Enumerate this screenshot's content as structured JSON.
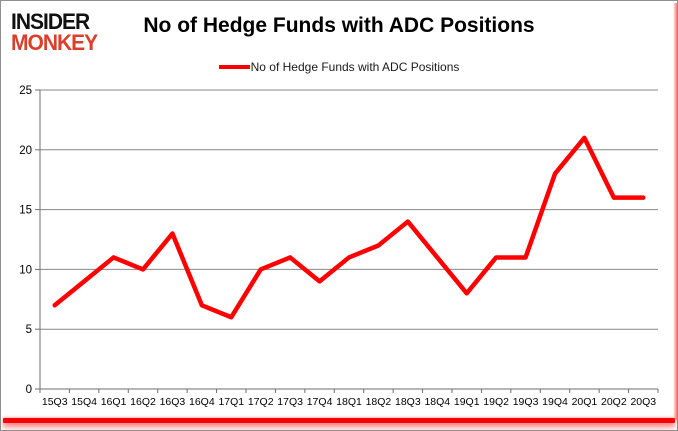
{
  "logo": {
    "line1": "INSIDER",
    "line2": "MONKEY"
  },
  "header": {
    "title": "No of Hedge Funds with ADC Positions"
  },
  "legend": {
    "label": "No of Hedge Funds with ADC Positions"
  },
  "colors": {
    "logo_accent": "#d9402c",
    "line_red": "#ff0000",
    "gridline": "#878787",
    "axis": "#6e6e6e",
    "label_text": "#000000",
    "frame_glow": "#f60303"
  },
  "chart_data": {
    "type": "line",
    "title": "No of Hedge Funds with ADC Positions",
    "series": [
      {
        "name": "No of Hedge Funds with ADC Positions",
        "values": [
          7,
          9,
          11,
          10,
          13,
          7,
          6,
          10,
          11,
          9,
          11,
          12,
          14,
          11,
          8,
          11,
          11,
          18,
          21,
          16,
          16
        ]
      }
    ],
    "categories": [
      "15Q3",
      "15Q4",
      "16Q1",
      "16Q2",
      "16Q3",
      "16Q4",
      "17Q1",
      "17Q2",
      "17Q3",
      "17Q4",
      "18Q1",
      "18Q2",
      "18Q3",
      "18Q4",
      "19Q1",
      "19Q2",
      "19Q3",
      "19Q4",
      "20Q1",
      "20Q2",
      "20Q3"
    ],
    "xlabel": "",
    "ylabel": "",
    "ylim": [
      0,
      25
    ],
    "yticks": [
      0,
      5,
      10,
      15,
      20,
      25
    ],
    "grid": true,
    "legend_position": "top-center",
    "line_color": "#ff0000"
  }
}
